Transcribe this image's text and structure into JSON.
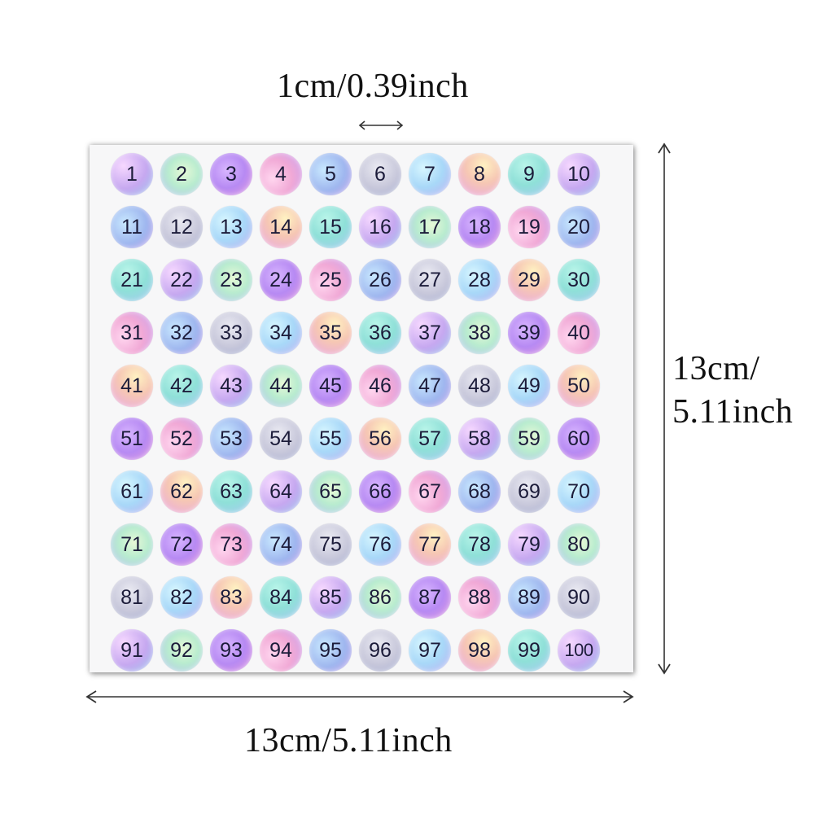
{
  "labels": {
    "top": "1cm/0.39inch",
    "right_line1": "13cm/",
    "right_line2": "5.11inch",
    "bottom": "13cm/5.11inch"
  },
  "stickers": [
    "1",
    "2",
    "3",
    "4",
    "5",
    "6",
    "7",
    "8",
    "9",
    "10",
    "11",
    "12",
    "13",
    "14",
    "15",
    "16",
    "17",
    "18",
    "19",
    "20",
    "21",
    "22",
    "23",
    "24",
    "25",
    "26",
    "27",
    "28",
    "29",
    "30",
    "31",
    "32",
    "33",
    "34",
    "35",
    "36",
    "37",
    "38",
    "39",
    "40",
    "41",
    "42",
    "43",
    "44",
    "45",
    "46",
    "47",
    "48",
    "49",
    "50",
    "51",
    "52",
    "53",
    "54",
    "55",
    "56",
    "57",
    "58",
    "59",
    "60",
    "61",
    "62",
    "63",
    "64",
    "65",
    "66",
    "67",
    "68",
    "69",
    "70",
    "71",
    "72",
    "73",
    "74",
    "75",
    "76",
    "77",
    "78",
    "79",
    "80",
    "81",
    "82",
    "83",
    "84",
    "85",
    "86",
    "87",
    "88",
    "89",
    "90",
    "91",
    "92",
    "93",
    "94",
    "95",
    "96",
    "97",
    "98",
    "99",
    "100"
  ],
  "colors": {
    "text": "#1c1c3a",
    "sheet": "#f7f7f8",
    "arrow": "#333333"
  }
}
